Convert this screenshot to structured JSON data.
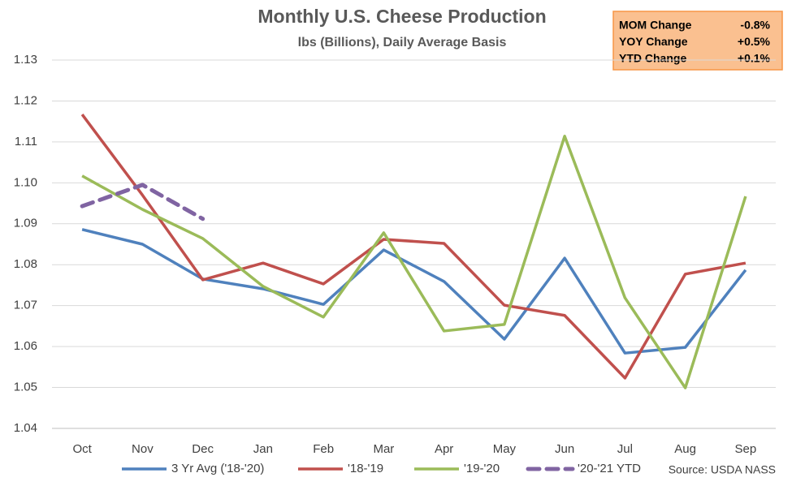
{
  "chart_data": {
    "type": "line",
    "title": "Monthly U.S. Cheese Production",
    "subtitle": "lbs (Billions), Daily Average Basis",
    "categories": [
      "Oct",
      "Nov",
      "Dec",
      "Jan",
      "Feb",
      "Mar",
      "Apr",
      "May",
      "Jun",
      "Jul",
      "Aug",
      "Sep"
    ],
    "series": [
      {
        "name": "3 Yr Avg ('18-'20)",
        "color": "#4f81bd",
        "values": [
          1.0886,
          1.085,
          1.0765,
          1.0741,
          1.0703,
          1.0836,
          1.0759,
          1.0618,
          1.0816,
          1.0584,
          1.0598,
          1.0787
        ]
      },
      {
        "name": "'18-'19",
        "color": "#c0504d",
        "values": [
          1.1167,
          1.097,
          1.0763,
          1.0804,
          1.0753,
          1.0862,
          1.0852,
          1.0701,
          1.0676,
          1.0523,
          1.0777,
          1.0804
        ]
      },
      {
        "name": "'19-'20",
        "color": "#9bbb59",
        "values": [
          1.1017,
          1.0935,
          1.0864,
          1.0747,
          1.0672,
          1.0878,
          1.0638,
          1.0654,
          1.1114,
          1.0719,
          1.0499,
          1.0967
        ]
      },
      {
        "name": "'20-'21 YTD",
        "color": "#8064a2",
        "dashed": true,
        "values": [
          1.0943,
          1.0995,
          1.0912,
          null,
          null,
          null,
          null,
          null,
          null,
          null,
          null,
          null
        ]
      }
    ],
    "ylim": [
      1.04,
      1.13
    ],
    "yticks": [
      1.04,
      1.05,
      1.06,
      1.07,
      1.08,
      1.09,
      {
        "value": 1.1,
        "label": "1.10"
      },
      1.11,
      1.12,
      1.13
    ],
    "grid": true,
    "annotation": "Source: USDA NASS",
    "summary_box": [
      [
        "MOM Change",
        "-0.8%"
      ],
      [
        "YOY Change",
        "+0.5%"
      ],
      [
        "YTD Change",
        "+0.1%"
      ]
    ]
  }
}
